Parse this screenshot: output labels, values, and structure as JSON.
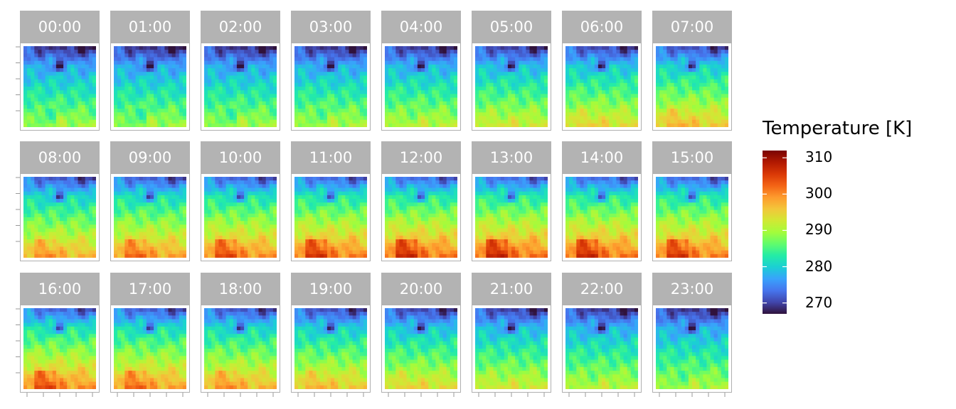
{
  "chart_data": {
    "type": "heatmap",
    "facet_labels": [
      "00:00",
      "01:00",
      "02:00",
      "03:00",
      "04:00",
      "05:00",
      "06:00",
      "07:00",
      "08:00",
      "09:00",
      "10:00",
      "11:00",
      "12:00",
      "13:00",
      "14:00",
      "15:00",
      "16:00",
      "17:00",
      "18:00",
      "19:00",
      "20:00",
      "21:00",
      "22:00",
      "23:00"
    ],
    "facet_layout": {
      "rows": 3,
      "cols": 8
    },
    "legend": {
      "title": "Temperature [K]",
      "ticks": [
        310,
        300,
        290,
        280,
        270
      ],
      "range": [
        267,
        312
      ],
      "palette": "turbo",
      "placement": "right"
    },
    "axis_ticks": {
      "x_count": 5,
      "y_count": 5,
      "labels_shown": false
    },
    "strip_color": "#b3b3b3",
    "strip_text_color": "#ffffff"
  }
}
